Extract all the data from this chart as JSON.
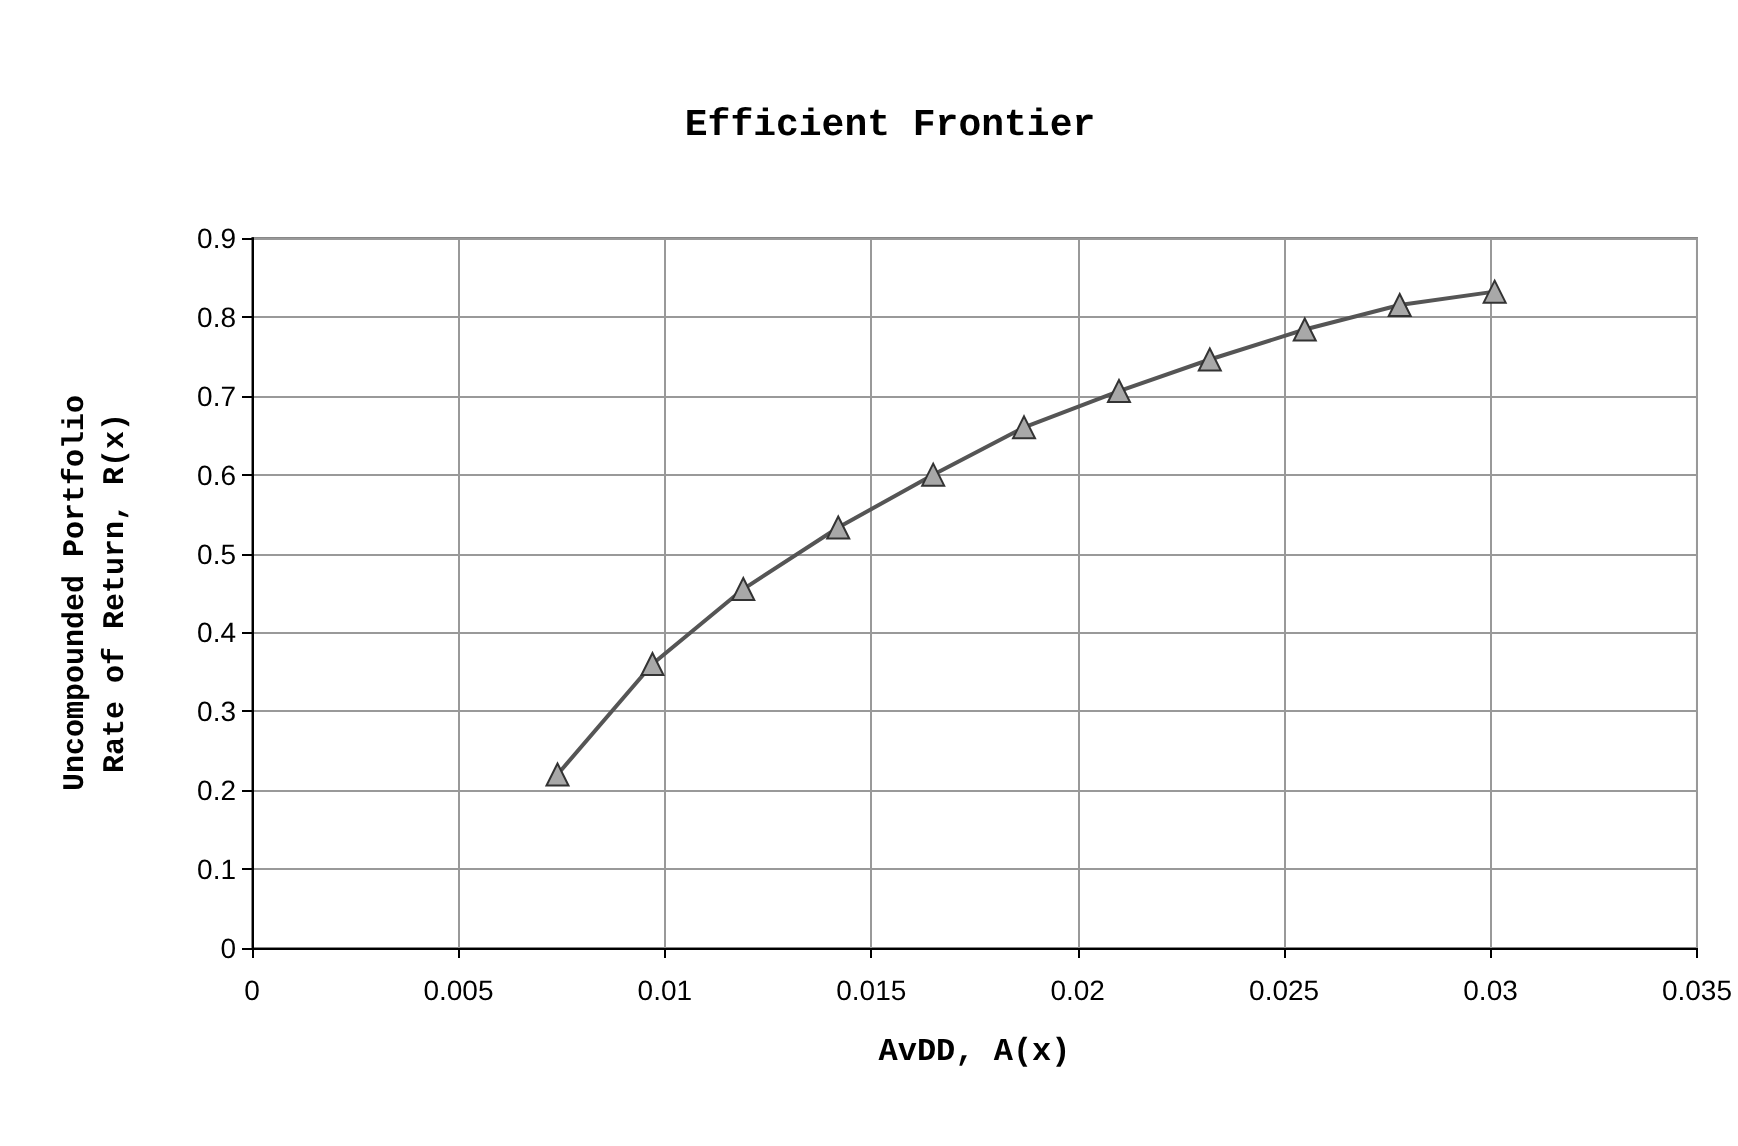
{
  "chart_data": {
    "type": "line",
    "title": "Efficient Frontier",
    "xlabel": "AvDD, A(x)",
    "ylabel": "Uncompounded Portfolio\nRate of Return, R(x)",
    "series": [
      {
        "color": "#555555",
        "x": [
          0.0074,
          0.0097,
          0.0119,
          0.0142,
          0.0165,
          0.0187,
          0.021,
          0.0232,
          0.0255,
          0.0278,
          0.0301
        ],
        "values": [
          0.22,
          0.36,
          0.455,
          0.533,
          0.6,
          0.66,
          0.706,
          0.746,
          0.784,
          0.815,
          0.832
        ]
      }
    ],
    "xlim": [
      0,
      0.035
    ],
    "xticks": [
      0,
      0.005,
      0.01,
      0.015,
      0.02,
      0.025,
      0.03,
      0.035
    ],
    "ylim": [
      0,
      0.9
    ],
    "yticks": [
      0,
      0.1,
      0.2,
      0.3,
      0.4,
      0.5,
      0.6,
      0.7,
      0.8,
      0.9
    ],
    "grid": true,
    "marker": "triangle",
    "line_style": "solid"
  }
}
